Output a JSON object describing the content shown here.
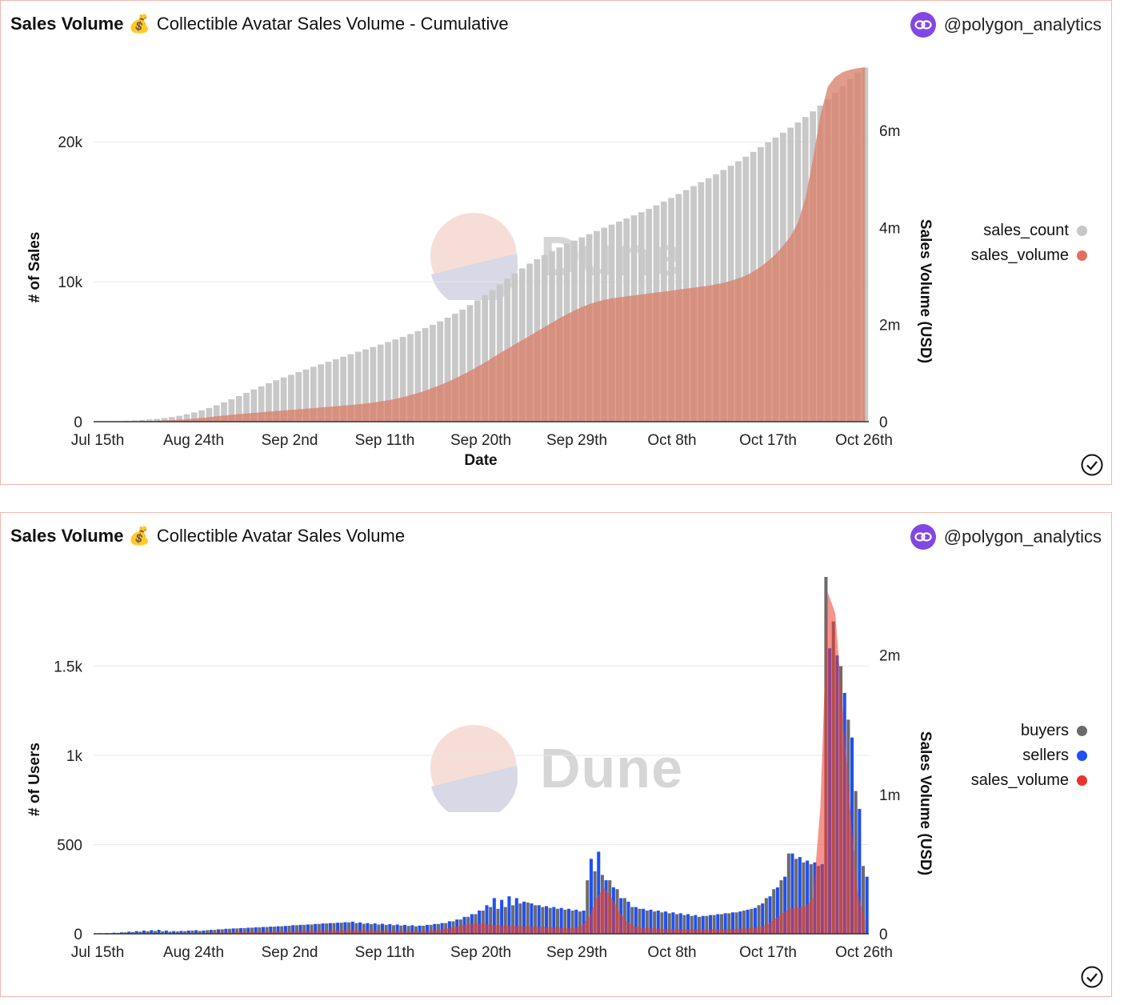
{
  "panels": [
    {
      "title_main": "Sales Volume",
      "title_emoji": "💰",
      "title_sub": "Collectible Avatar Sales Volume - Cumulative",
      "credit": "@polygon_analytics",
      "watermark": "Dune",
      "legend": [
        {
          "label": "sales_count",
          "color": "#c6c6c6"
        },
        {
          "label": "sales_volume",
          "color": "#e0705a"
        }
      ]
    },
    {
      "title_main": "Sales Volume",
      "title_emoji": "💰",
      "title_sub": "Collectible Avatar Sales Volume",
      "credit": "@polygon_analytics",
      "watermark": "Dune",
      "legend": [
        {
          "label": "buyers",
          "color": "#6b6b6b"
        },
        {
          "label": "sellers",
          "color": "#1f4ff5"
        },
        {
          "label": "sales_volume",
          "color": "#e8342a"
        }
      ]
    }
  ],
  "chart_data": [
    {
      "type": "bar",
      "title": "Collectible Avatar Sales Volume - Cumulative",
      "xlabel": "Date",
      "ylabel": "# of Sales",
      "y2label": "Sales Volume (USD)",
      "x_tick_labels": [
        "Jul 15th",
        "Aug 24th",
        "Sep 2nd",
        "Sep 11th",
        "Sep 20th",
        "Sep 29th",
        "Oct 8th",
        "Oct 17th",
        "Oct 26th"
      ],
      "y_ticks": [
        0,
        10000,
        20000
      ],
      "y_tick_labels": [
        "0",
        "10k",
        "20k"
      ],
      "y2_ticks": [
        0,
        2000000,
        4000000,
        6000000
      ],
      "y2_tick_labels": [
        "0",
        "2m",
        "4m",
        "6m"
      ],
      "ylim": [
        0,
        25500
      ],
      "y2lim": [
        0,
        7350000
      ],
      "grid": true,
      "legend_position": "right",
      "series": [
        {
          "name": "sales_count",
          "kind": "bar",
          "axis": "left",
          "values": [
            10,
            10,
            20,
            40,
            60,
            90,
            120,
            160,
            200,
            260,
            330,
            420,
            530,
            660,
            810,
            980,
            1170,
            1380,
            1600,
            1830,
            2060,
            2300,
            2530,
            2750,
            2960,
            3160,
            3350,
            3540,
            3730,
            3920,
            4100,
            4280,
            4460,
            4640,
            4820,
            5000,
            5170,
            5340,
            5510,
            5690,
            5870,
            6060,
            6260,
            6470,
            6690,
            6920,
            7170,
            7430,
            7710,
            8010,
            8330,
            8670,
            9030,
            9410,
            9810,
            10210,
            10590,
            10950,
            11290,
            11610,
            11910,
            12190,
            12450,
            12700,
            12940,
            13170,
            13400,
            13630,
            13860,
            14080,
            14300,
            14520,
            14740,
            14970,
            15210,
            15460,
            15720,
            15990,
            16270,
            16550,
            16830,
            17110,
            17390,
            17680,
            17980,
            18290,
            18610,
            18940,
            19280,
            19620,
            19960,
            20300,
            20650,
            21010,
            21380,
            21770,
            22170,
            22590,
            23030,
            23490,
            23970,
            24460,
            24960,
            25300
          ]
        },
        {
          "name": "sales_volume",
          "kind": "area",
          "axis": "right",
          "values": [
            0,
            0,
            1000,
            2000,
            4000,
            7000,
            10000,
            15000,
            20000,
            26000,
            33000,
            41000,
            51000,
            63000,
            77000,
            93000,
            110000,
            127000,
            142000,
            156000,
            169000,
            182000,
            195000,
            207000,
            219000,
            231000,
            243000,
            255000,
            267000,
            279000,
            292000,
            305000,
            318000,
            331000,
            345000,
            360000,
            376000,
            394000,
            415000,
            440000,
            470000,
            505000,
            545000,
            590000,
            640000,
            695000,
            755000,
            820000,
            890000,
            965000,
            1045000,
            1130000,
            1220000,
            1315000,
            1410000,
            1500000,
            1590000,
            1680000,
            1770000,
            1860000,
            1950000,
            2040000,
            2130000,
            2210000,
            2290000,
            2360000,
            2420000,
            2470000,
            2510000,
            2540000,
            2560000,
            2580000,
            2600000,
            2620000,
            2640000,
            2660000,
            2680000,
            2700000,
            2720000,
            2740000,
            2760000,
            2780000,
            2800000,
            2830000,
            2860000,
            2900000,
            2950000,
            3010000,
            3090000,
            3190000,
            3310000,
            3450000,
            3620000,
            3820000,
            4100000,
            4600000,
            5400000,
            6300000,
            6900000,
            7100000,
            7200000,
            7250000,
            7280000,
            7300000
          ]
        }
      ]
    },
    {
      "type": "bar",
      "title": "Collectible Avatar Sales Volume",
      "xlabel": "",
      "ylabel": "# of Users",
      "y2label": "Sales Volume (USD)",
      "x_tick_labels": [
        "Jul 15th",
        "Aug 24th",
        "Sep 2nd",
        "Sep 11th",
        "Sep 20th",
        "Sep 29th",
        "Oct 8th",
        "Oct 17th",
        "Oct 26th"
      ],
      "y_ticks": [
        0,
        500,
        1000,
        1500
      ],
      "y_tick_labels": [
        "0",
        "500",
        "1k",
        "1.5k"
      ],
      "y2_ticks": [
        0,
        1000000,
        2000000
      ],
      "y2_tick_labels": [
        "0",
        "1m",
        "2m"
      ],
      "ylim": [
        0,
        2000
      ],
      "y2lim": [
        0,
        2560000
      ],
      "grid": true,
      "legend_position": "right",
      "series": [
        {
          "name": "buyers",
          "kind": "bar",
          "axis": "left",
          "values": [
            2,
            2,
            3,
            5,
            8,
            10,
            12,
            14,
            16,
            14,
            12,
            13,
            15,
            18,
            16,
            20,
            22,
            25,
            28,
            30,
            32,
            34,
            36,
            38,
            40,
            42,
            45,
            48,
            50,
            52,
            55,
            58,
            60,
            62,
            64,
            60,
            56,
            54,
            52,
            50,
            48,
            46,
            44,
            42,
            45,
            50,
            55,
            60,
            70,
            80,
            95,
            110,
            130,
            150,
            140,
            150,
            160,
            170,
            175,
            160,
            150,
            145,
            140,
            135,
            130,
            125,
            300,
            350,
            330,
            300,
            250,
            200,
            150,
            140,
            130,
            125,
            120,
            115,
            110,
            105,
            100,
            95,
            100,
            105,
            110,
            115,
            120,
            130,
            140,
            160,
            200,
            250,
            300,
            450,
            420,
            400,
            390,
            380,
            2000,
            1750,
            1500,
            1200,
            800,
            380
          ]
        },
        {
          "name": "sellers",
          "kind": "bar",
          "axis": "left",
          "values": [
            3,
            4,
            6,
            8,
            12,
            15,
            18,
            20,
            22,
            18,
            15,
            16,
            18,
            20,
            18,
            22,
            25,
            28,
            30,
            32,
            34,
            36,
            38,
            40,
            42,
            44,
            48,
            50,
            52,
            55,
            58,
            60,
            62,
            65,
            68,
            64,
            60,
            58,
            56,
            54,
            52,
            50,
            48,
            46,
            50,
            55,
            60,
            70,
            80,
            95,
            110,
            130,
            160,
            200,
            190,
            210,
            200,
            180,
            170,
            160,
            155,
            150,
            145,
            140,
            135,
            130,
            420,
            460,
            300,
            260,
            200,
            180,
            150,
            140,
            135,
            130,
            125,
            120,
            115,
            110,
            105,
            100,
            105,
            110,
            115,
            120,
            125,
            135,
            145,
            170,
            210,
            260,
            320,
            450,
            430,
            410,
            400,
            390,
            1600,
            1560,
            1350,
            1100,
            700,
            320
          ]
        },
        {
          "name": "sales_volume",
          "kind": "area",
          "axis": "right",
          "values": [
            0,
            0,
            0,
            1000,
            2000,
            3000,
            4000,
            5000,
            6000,
            5000,
            4000,
            5000,
            6000,
            7000,
            6000,
            8000,
            9000,
            10000,
            11000,
            12000,
            13000,
            14000,
            15000,
            16000,
            17000,
            18000,
            19000,
            20000,
            21000,
            22000,
            23000,
            24000,
            25000,
            26000,
            27000,
            26000,
            25000,
            24000,
            23000,
            22000,
            21000,
            20000,
            19000,
            18000,
            20000,
            25000,
            30000,
            40000,
            50000,
            60000,
            70000,
            75000,
            70000,
            65000,
            60000,
            58000,
            56000,
            54000,
            52000,
            50000,
            48000,
            46000,
            44000,
            42000,
            40000,
            60000,
            120000,
            260000,
            330000,
            260000,
            160000,
            90000,
            55000,
            45000,
            40000,
            38000,
            36000,
            34000,
            33000,
            32000,
            31000,
            30000,
            31000,
            32000,
            33000,
            34000,
            36000,
            40000,
            45000,
            50000,
            70000,
            110000,
            150000,
            180000,
            190000,
            200000,
            250000,
            900000,
            2450000,
            2300000,
            1600000,
            900000,
            300000,
            100000
          ]
        }
      ]
    }
  ]
}
